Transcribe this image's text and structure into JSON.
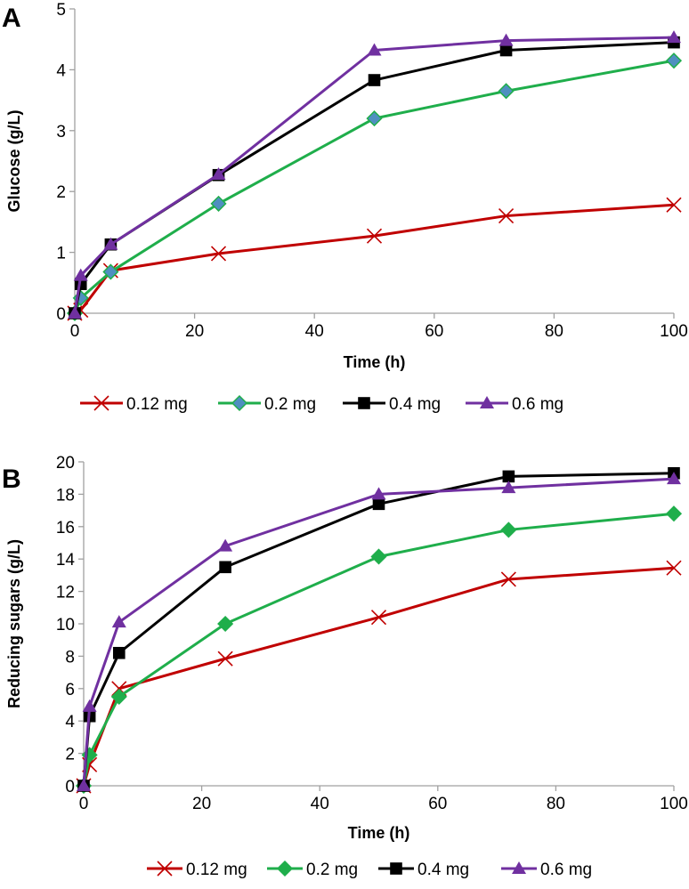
{
  "colors": {
    "0.12 mg": "#c00000",
    "0.2 mg": "#1fae4b",
    "0.4 mg": "#000000",
    "0.6 mg": "#7030a0",
    "diamond_fill_A": "#4f8fc0",
    "axis": "#a0a0a0"
  },
  "chart_data": [
    {
      "type": "line",
      "panel_label": "A",
      "xlabel": "Time (h)",
      "ylabel": "Glucose (g/L)",
      "xlim": [
        0,
        100
      ],
      "ylim": [
        0,
        5
      ],
      "xticks": [
        0,
        20,
        40,
        60,
        80,
        100
      ],
      "yticks": [
        0,
        1,
        2,
        3,
        4,
        5
      ],
      "grid": false,
      "legend_position": "bottom",
      "x": [
        0,
        1,
        6,
        24,
        50,
        72,
        100
      ],
      "series": [
        {
          "name": "0.12 mg",
          "marker": "x",
          "values": [
            0,
            0.05,
            0.7,
            0.98,
            1.27,
            1.6,
            1.78
          ]
        },
        {
          "name": "0.2 mg",
          "marker": "diamond",
          "values": [
            0,
            0.25,
            0.68,
            1.8,
            3.2,
            3.65,
            4.15
          ]
        },
        {
          "name": "0.4 mg",
          "marker": "square",
          "values": [
            0,
            0.48,
            1.13,
            2.27,
            3.83,
            4.32,
            4.45
          ]
        },
        {
          "name": "0.6 mg",
          "marker": "triangle",
          "values": [
            0,
            0.62,
            1.13,
            2.28,
            4.32,
            4.48,
            4.53
          ]
        }
      ]
    },
    {
      "type": "line",
      "panel_label": "B",
      "xlabel": "Time (h)",
      "ylabel": "Reducing sugars (g/L)",
      "xlim": [
        0,
        100
      ],
      "ylim": [
        0,
        20
      ],
      "xticks": [
        0,
        20,
        40,
        60,
        80,
        100
      ],
      "yticks": [
        0,
        2,
        4,
        6,
        8,
        10,
        12,
        14,
        16,
        18,
        20
      ],
      "grid": false,
      "legend_position": "bottom",
      "x": [
        0,
        1,
        6,
        24,
        50,
        72,
        100
      ],
      "series": [
        {
          "name": "0.12 mg",
          "marker": "x",
          "values": [
            0,
            1.3,
            6.0,
            7.85,
            10.4,
            12.75,
            13.45
          ]
        },
        {
          "name": "0.2 mg",
          "marker": "diamond",
          "values": [
            0,
            1.9,
            5.5,
            10.0,
            14.15,
            15.8,
            16.8
          ]
        },
        {
          "name": "0.4 mg",
          "marker": "square",
          "values": [
            0,
            4.3,
            8.2,
            13.5,
            17.4,
            19.1,
            19.3
          ]
        },
        {
          "name": "0.6 mg",
          "marker": "triangle",
          "values": [
            0,
            4.9,
            10.1,
            14.8,
            18.0,
            18.4,
            18.95
          ]
        }
      ]
    }
  ]
}
